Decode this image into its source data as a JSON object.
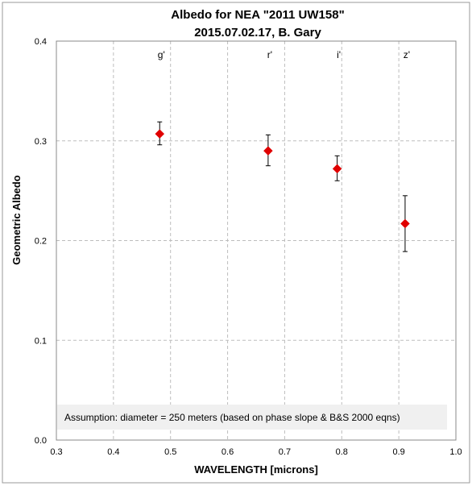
{
  "chart_data": {
    "type": "scatter",
    "title": "Albedo for NEA \"2011 UW158\"",
    "subtitle": "2015.07.02.17, B. Gary",
    "xlabel": "WAVELENGTH [microns]",
    "ylabel": "Geometric Albedo",
    "xlim": [
      0.3,
      1.0
    ],
    "ylim": [
      0.0,
      0.4
    ],
    "x_ticks": [
      "0.3",
      "0.4",
      "0.5",
      "0.6",
      "0.7",
      "0.8",
      "0.9",
      "1.0"
    ],
    "y_ticks": [
      "0.0",
      "0.1",
      "0.2",
      "0.3",
      "0.4"
    ],
    "grid": true,
    "marker": "diamond",
    "marker_color": "#e00000",
    "points": [
      {
        "label": "g'",
        "x": 0.481,
        "y": 0.307,
        "err_low": 0.296,
        "err_high": 0.319
      },
      {
        "label": "r'",
        "x": 0.671,
        "y": 0.29,
        "err_low": 0.275,
        "err_high": 0.306
      },
      {
        "label": "i'",
        "x": 0.792,
        "y": 0.272,
        "err_low": 0.26,
        "err_high": 0.285
      },
      {
        "label": "z'",
        "x": 0.911,
        "y": 0.217,
        "err_low": 0.189,
        "err_high": 0.245
      }
    ],
    "annotation": "Assumption: diameter = 250 meters (based on phase slope & B&S 2000 eqns)"
  }
}
